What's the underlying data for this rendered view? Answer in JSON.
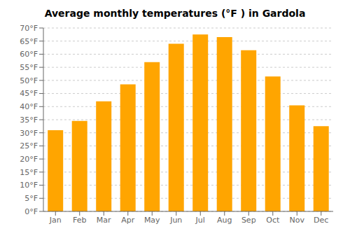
{
  "chart_data": {
    "type": "bar",
    "title": "Average monthly temperatures (°F ) in Gardola",
    "categories": [
      "Jan",
      "Feb",
      "Mar",
      "Apr",
      "May",
      "Jun",
      "Jul",
      "Aug",
      "Sep",
      "Oct",
      "Nov",
      "Dec"
    ],
    "values": [
      31,
      34.5,
      42,
      48.5,
      57,
      64,
      67.5,
      66.5,
      61.5,
      51.5,
      40.5,
      32.5
    ],
    "color": "#FFA500",
    "ylim": [
      0,
      70
    ],
    "yticks": [
      {
        "value": 0,
        "label": "0°F"
      },
      {
        "value": 5,
        "label": "5°F"
      },
      {
        "value": 10,
        "label": "10°F"
      },
      {
        "value": 15,
        "label": "15°F"
      },
      {
        "value": 20,
        "label": "20°F"
      },
      {
        "value": 25,
        "label": "25°F"
      },
      {
        "value": 30,
        "label": "30°F"
      },
      {
        "value": 35,
        "label": "35°F"
      },
      {
        "value": 40,
        "label": "40°F"
      },
      {
        "value": 45,
        "label": "45°F"
      },
      {
        "value": 50,
        "label": "50°F"
      },
      {
        "value": 55,
        "label": "55°F"
      },
      {
        "value": 60,
        "label": "60°F"
      },
      {
        "value": 65,
        "label": "65°F"
      },
      {
        "value": 70,
        "label": "70°F"
      }
    ],
    "grid": true
  }
}
